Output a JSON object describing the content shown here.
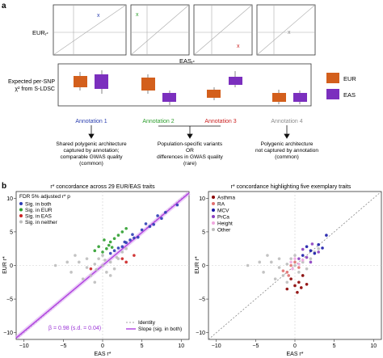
{
  "panel_a": {
    "label": "a",
    "eur_axis_label": "EUR",
    "eas_axis_label": "EAS",
    "axis_suffix": "r*",
    "ylabel_line1": "Expected per-SNP",
    "ylabel_line2": "χ² from S-LDSC",
    "legend": [
      {
        "name": "EUR",
        "color": "#d35f1c"
      },
      {
        "name": "EAS",
        "color": "#7b2fbe"
      }
    ],
    "annotations": [
      {
        "label": "Annotation 1",
        "color": "#2b3fb0",
        "marker": "x",
        "marker_color": "#2b3fb0",
        "desc": [
          "Shared polygenic architecture",
          "captured by annotation;",
          "comparable GWAS quality",
          "(common)"
        ]
      },
      {
        "label": "Annotation 2",
        "color": "#2e9e2e",
        "marker": "x",
        "marker_color": "#2e9e2e",
        "desc": [
          "Population-specific variants",
          "OR",
          "differences in GWAS quality",
          "(rare)"
        ]
      },
      {
        "label": "Annotation 3",
        "color": "#cc2222",
        "marker": "x",
        "marker_color": "#cc2222",
        "desc": []
      },
      {
        "label": "Annotation 4",
        "color": "#8c8c8c",
        "marker": "x",
        "marker_color": "#8c8c8c",
        "desc": [
          "Polygenic architecture",
          "not captured by annotation",
          "(common)"
        ]
      }
    ]
  },
  "panel_b": {
    "label": "b",
    "left": {
      "title": "r* concordance across 29 EUR/EAS traits",
      "xlabel": "EAS r*",
      "ylabel": "EUR r*",
      "legend_title": "FDR 5% adjusted r* p",
      "legend": [
        {
          "name": "Sig. in both",
          "color": "#2c3cb4"
        },
        {
          "name": "Sig. in EUR",
          "color": "#2e9e2e"
        },
        {
          "name": "Sig. in EAS",
          "color": "#cc2222"
        },
        {
          "name": "Sig. in neither",
          "color": "#bdbdbd"
        }
      ],
      "lines_legend": [
        {
          "name": "Identity",
          "style": "dashed",
          "color": "#888888"
        },
        {
          "name": "Slope (sig. in both)",
          "style": "solid",
          "color": "#b040e0"
        }
      ],
      "slope_text": "β = 0.98 (s.d. = 0.04)"
    },
    "right": {
      "title": "r* concordance highlighting five exemplary traits",
      "xlabel": "EAS r*",
      "ylabel": "EUR r*",
      "legend": [
        {
          "name": "Asthma",
          "color": "#8b0000"
        },
        {
          "name": "RA",
          "color": "#e07070"
        },
        {
          "name": "MCV",
          "color": "#1a1aa8"
        },
        {
          "name": "PrCa",
          "color": "#8a3fc0"
        },
        {
          "name": "Height",
          "color": "#f0a8e0"
        },
        {
          "name": "Other",
          "color": "#bdbdbd"
        }
      ]
    }
  },
  "chart_data": [
    {
      "type": "scatter",
      "title": "r* concordance across 29 EUR/EAS traits",
      "xlabel": "EAS r*",
      "ylabel": "EUR r*",
      "xlim": [
        -11,
        11
      ],
      "ylim": [
        -11,
        11
      ],
      "xticks": [
        -10,
        -5,
        0,
        5,
        10
      ],
      "yticks": [
        -10,
        -5,
        0,
        5,
        10
      ],
      "series": [
        {
          "name": "Sig. in both",
          "color": "#2c3cb4",
          "points": [
            [
              1.5,
              2.2
            ],
            [
              2.5,
              2.8
            ],
            [
              3,
              3.4
            ],
            [
              4,
              4.1
            ],
            [
              5,
              5.3
            ],
            [
              6,
              5.8
            ],
            [
              7,
              7.4
            ],
            [
              3.5,
              3.8
            ],
            [
              4.5,
              4.2
            ],
            [
              2,
              2.6
            ],
            [
              5.5,
              6.2
            ],
            [
              6.5,
              6.1
            ],
            [
              8,
              7.9
            ],
            [
              9.5,
              9
            ],
            [
              1,
              1.8
            ],
            [
              2.8,
              3.5
            ],
            [
              3.8,
              4.6
            ],
            [
              7.5,
              7
            ]
          ]
        },
        {
          "name": "Sig. in EUR",
          "color": "#2e9e2e",
          "points": [
            [
              0.5,
              2.5
            ],
            [
              1,
              3.5
            ],
            [
              0,
              2
            ],
            [
              1.5,
              4
            ],
            [
              -0.5,
              2.8
            ],
            [
              2,
              4.5
            ],
            [
              0.8,
              3
            ],
            [
              2.5,
              5
            ],
            [
              1.2,
              2.7
            ],
            [
              -1,
              2.2
            ],
            [
              3,
              5.5
            ],
            [
              0.2,
              3.8
            ]
          ]
        },
        {
          "name": "Sig. in EAS",
          "color": "#cc2222",
          "points": [
            [
              2.5,
              1
            ],
            [
              3,
              0.5
            ],
            [
              4,
              1.5
            ],
            [
              -1.5,
              -0.5
            ]
          ]
        },
        {
          "name": "Sig. in neither",
          "color": "#bdbdbd",
          "points": [
            [
              -6,
              0
            ],
            [
              -4,
              -1
            ],
            [
              -3,
              0.5
            ],
            [
              -2,
              -0.3
            ],
            [
              -1,
              0.2
            ],
            [
              0,
              0
            ],
            [
              1,
              0.5
            ],
            [
              2,
              1
            ],
            [
              -2.5,
              -2
            ],
            [
              -1.5,
              -1.5
            ],
            [
              0.5,
              -1
            ],
            [
              -0.5,
              1
            ],
            [
              1.5,
              -0.5
            ],
            [
              -3.5,
              1.5
            ],
            [
              2.5,
              2
            ],
            [
              -1,
              -2.5
            ],
            [
              0,
              1.5
            ],
            [
              3,
              2.5
            ],
            [
              -2,
              1
            ],
            [
              1,
              -1.5
            ],
            [
              -4.5,
              0.5
            ],
            [
              0.3,
              0.8
            ],
            [
              -0.8,
              -0.6
            ],
            [
              1.8,
              1.2
            ]
          ]
        }
      ],
      "lines": [
        {
          "name": "Identity",
          "slope": 1,
          "intercept": 0
        },
        {
          "name": "Slope (sig. in both)",
          "slope": 0.98,
          "intercept": 0
        }
      ]
    },
    {
      "type": "scatter",
      "title": "r* concordance highlighting five exemplary traits",
      "xlabel": "EAS r*",
      "ylabel": "EUR r*",
      "xlim": [
        -11,
        11
      ],
      "ylim": [
        -11,
        11
      ],
      "xticks": [
        -10,
        -5,
        0,
        5,
        10
      ],
      "yticks": [
        -10,
        -5,
        0,
        5,
        10
      ],
      "series": [
        {
          "name": "Asthma",
          "color": "#8b0000",
          "points": [
            [
              -0.5,
              -2
            ],
            [
              0,
              -3
            ],
            [
              0.5,
              -2.5
            ],
            [
              1,
              -1.5
            ],
            [
              -1,
              -3.5
            ],
            [
              0.3,
              -4
            ],
            [
              1.5,
              -2.8
            ],
            [
              0.8,
              -3.3
            ]
          ]
        },
        {
          "name": "RA",
          "color": "#e07070",
          "points": [
            [
              -1,
              -1
            ],
            [
              -0.5,
              0
            ],
            [
              -1.5,
              -0.8
            ],
            [
              0,
              0.5
            ],
            [
              -0.8,
              -1.5
            ],
            [
              0.5,
              -0.3
            ]
          ]
        },
        {
          "name": "MCV",
          "color": "#1a1aa8",
          "points": [
            [
              1,
              1.5
            ],
            [
              2,
              2.2
            ],
            [
              3,
              3.1
            ],
            [
              2.5,
              1.8
            ],
            [
              1.5,
              2.8
            ],
            [
              3.5,
              2.6
            ],
            [
              4,
              4.5
            ]
          ]
        },
        {
          "name": "PrCa",
          "color": "#8a3fc0",
          "points": [
            [
              0.5,
              1
            ],
            [
              1.5,
              1.2
            ],
            [
              2,
              0.5
            ],
            [
              3,
              2
            ],
            [
              2.2,
              3.2
            ],
            [
              1,
              2.4
            ]
          ]
        },
        {
          "name": "Height",
          "color": "#f0a8e0",
          "points": [
            [
              -0.5,
              0.5
            ],
            [
              0,
              1
            ],
            [
              0.5,
              0.2
            ],
            [
              1,
              0.8
            ],
            [
              -0.3,
              -0.5
            ]
          ]
        },
        {
          "name": "Other",
          "color": "#bdbdbd",
          "points": [
            [
              -6,
              0
            ],
            [
              -4,
              -1
            ],
            [
              -3,
              0.5
            ],
            [
              -2,
              -0.3
            ],
            [
              -1,
              0.2
            ],
            [
              0,
              0
            ],
            [
              1,
              0.5
            ],
            [
              2,
              1
            ],
            [
              -2.5,
              -2
            ],
            [
              -1.5,
              -1.5
            ],
            [
              0.5,
              -1
            ],
            [
              -0.5,
              1
            ],
            [
              1.5,
              -0.5
            ],
            [
              -3.5,
              1.5
            ],
            [
              2.5,
              2
            ],
            [
              -1,
              -2.5
            ],
            [
              0,
              1.5
            ],
            [
              3,
              2.5
            ],
            [
              -2,
              1
            ],
            [
              1,
              -1.5
            ],
            [
              -4.5,
              0.5
            ]
          ]
        }
      ],
      "lines": [
        {
          "name": "Identity",
          "slope": 1,
          "intercept": 0
        }
      ]
    }
  ]
}
